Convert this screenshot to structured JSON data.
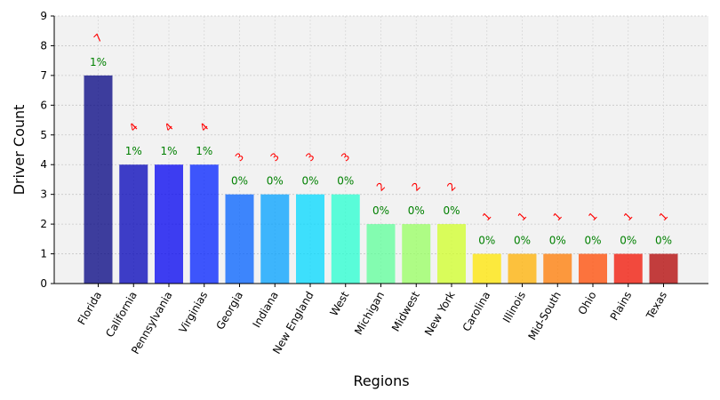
{
  "chart_data": {
    "type": "bar",
    "xlabel": "Regions",
    "ylabel": "Driver Count",
    "ylim": [
      0,
      9
    ],
    "yticks": [
      "0",
      "1",
      "2",
      "3",
      "4",
      "5",
      "6",
      "7",
      "8",
      "9"
    ],
    "grid": true,
    "categories": [
      "Florida",
      "California",
      "Pennsylvania",
      "Virginias",
      "Georgia",
      "Indiana",
      "New England",
      "West",
      "Michigan",
      "Midwest",
      "New York",
      "Carolina",
      "Illinois",
      "Mid-South",
      "Ohio",
      "Plains",
      "Texas"
    ],
    "values": [
      7,
      4,
      4,
      4,
      3,
      3,
      3,
      3,
      2,
      2,
      2,
      1,
      1,
      1,
      1,
      1,
      1
    ],
    "count_labels": [
      "7",
      "4",
      "4",
      "4",
      "3",
      "3",
      "3",
      "3",
      "2",
      "2",
      "2",
      "1",
      "1",
      "1",
      "1",
      "1",
      "1"
    ],
    "percent_labels": [
      "1%",
      "1%",
      "1%",
      "1%",
      "0%",
      "0%",
      "0%",
      "0%",
      "0%",
      "0%",
      "0%",
      "0%",
      "0%",
      "0%",
      "0%",
      "0%",
      "0%"
    ],
    "bar_colors": [
      "#000080",
      "#0000b8",
      "#0000f0",
      "#0020ff",
      "#0060ff",
      "#00a0ff",
      "#00d8ff",
      "#26ffd0",
      "#5eff9a",
      "#97ff60",
      "#d0ff27",
      "#ffe600",
      "#ffb000",
      "#ff7a00",
      "#ff4800",
      "#f11000",
      "#b20000"
    ],
    "plot_background": "#f2f2f2",
    "count_label_color": "#ff0000",
    "percent_label_color": "#008000"
  }
}
